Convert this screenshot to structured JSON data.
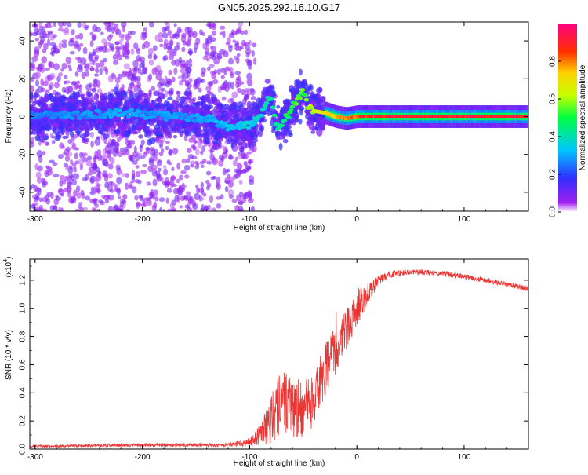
{
  "title": "GN05.2025.292.16.10.G17",
  "chart_data": [
    {
      "type": "heatmap",
      "name": "spectrogram",
      "xlabel": "Height of straight line (km)",
      "ylabel": "Frequency (Hz)",
      "xlim": [
        -305,
        160
      ],
      "ylim": [
        -50,
        50
      ],
      "xticks": [
        -300,
        -200,
        -100,
        0,
        100
      ],
      "yticks": [
        -40,
        -20,
        0,
        20,
        40
      ],
      "colorbar": {
        "label": "Normalized spectral amplitude",
        "range": [
          0,
          1
        ],
        "ticks": [
          "0.0",
          "0.2",
          "0.4",
          "0.6",
          "0.8"
        ],
        "tick_values": [
          0.0,
          0.2,
          0.4,
          0.6,
          0.8
        ]
      },
      "ridge": {
        "x": [
          -300,
          -260,
          -220,
          -180,
          -140,
          -120,
          -100,
          -90,
          -85,
          -80,
          -75,
          -70,
          -60,
          -50,
          -45,
          -40,
          -30,
          -20,
          -10,
          0,
          40,
          80,
          120,
          160
        ],
        "y": [
          0,
          1,
          2,
          0,
          -1,
          -5,
          -5,
          0,
          8,
          10,
          -5,
          -4,
          5,
          13,
          5,
          3,
          2,
          0,
          -1,
          0,
          0,
          0,
          0,
          0
        ],
        "amplitude": [
          0.28,
          0.3,
          0.32,
          0.3,
          0.32,
          0.35,
          0.38,
          0.4,
          0.42,
          0.44,
          0.46,
          0.5,
          0.55,
          0.58,
          0.62,
          0.68,
          0.74,
          0.8,
          0.85,
          0.92,
          0.98,
          0.98,
          0.98,
          0.97
        ]
      }
    },
    {
      "type": "line",
      "name": "snr",
      "xlabel": "Height of straight line (km)",
      "ylabel": "SNR (10 * v/v)",
      "yscale_label": "(x10",
      "yscale_exp": "4",
      "xlim": [
        -305,
        160
      ],
      "ylim": [
        0,
        1.35
      ],
      "xticks": [
        -300,
        -200,
        -100,
        0,
        100
      ],
      "yticks": [
        "0.0",
        "0.2",
        "0.4",
        "0.6",
        "0.8",
        "1.0",
        "1.2"
      ],
      "ytick_values": [
        0.0,
        0.2,
        0.4,
        0.6,
        0.8,
        1.0,
        1.2
      ],
      "color": "#ee3333",
      "envelope": {
        "x": [
          -305,
          -200,
          -120,
          -100,
          -90,
          -80,
          -70,
          -60,
          -50,
          -40,
          -30,
          -20,
          -10,
          0,
          10,
          20,
          30,
          50,
          80,
          120,
          160
        ],
        "y": [
          0.02,
          0.03,
          0.03,
          0.05,
          0.1,
          0.2,
          0.35,
          0.3,
          0.28,
          0.35,
          0.55,
          0.7,
          0.85,
          1.0,
          1.1,
          1.2,
          1.24,
          1.26,
          1.25,
          1.2,
          1.14
        ],
        "noise": [
          0.008,
          0.012,
          0.012,
          0.03,
          0.08,
          0.18,
          0.22,
          0.22,
          0.2,
          0.2,
          0.2,
          0.18,
          0.16,
          0.14,
          0.08,
          0.04,
          0.025,
          0.02,
          0.02,
          0.018,
          0.018
        ]
      }
    }
  ]
}
